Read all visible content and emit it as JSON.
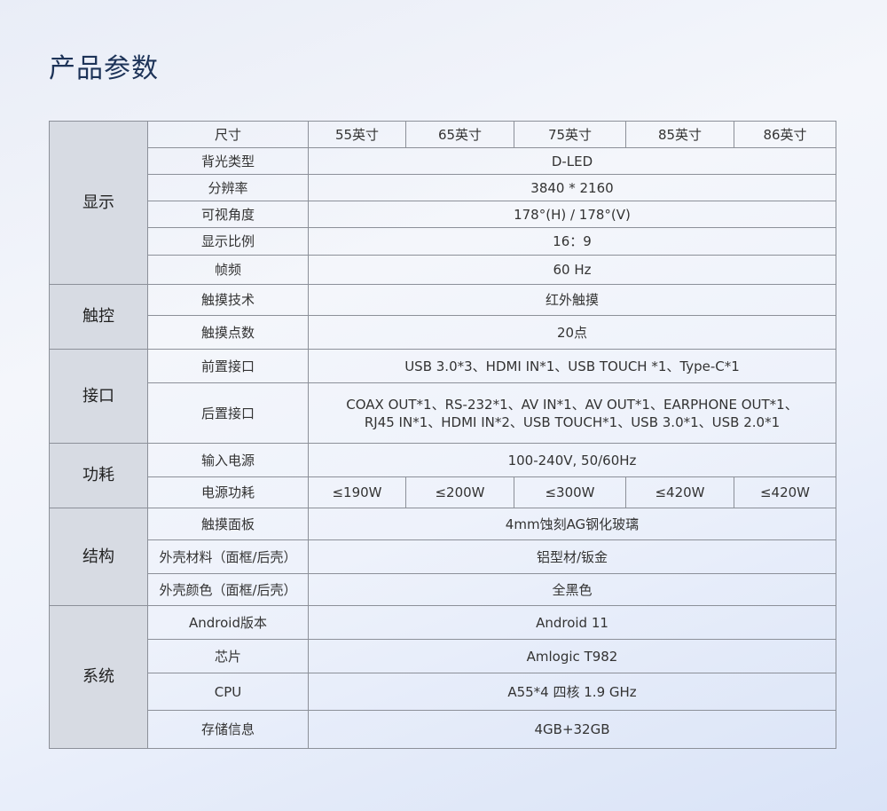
{
  "title": "产品参数",
  "sections": [
    {
      "category": "显示",
      "rows": [
        {
          "label": "尺寸",
          "values": [
            "55英寸",
            "65英寸",
            "75英寸",
            "85英寸",
            "86英寸"
          ]
        },
        {
          "label": "背光类型",
          "values": [
            "D-LED"
          ]
        },
        {
          "label": "分辨率",
          "values": [
            "3840 * 2160"
          ]
        },
        {
          "label": "可视角度",
          "values": [
            "178°(H) / 178°(V)"
          ]
        },
        {
          "label": "显示比例",
          "values": [
            "16：9"
          ]
        },
        {
          "label": "帧频",
          "values": [
            "60 Hz"
          ]
        }
      ]
    },
    {
      "category": "触控",
      "rows": [
        {
          "label": "触摸技术",
          "values": [
            "红外触摸"
          ]
        },
        {
          "label": "触摸点数",
          "values": [
            "20点"
          ]
        }
      ]
    },
    {
      "category": "接口",
      "rows": [
        {
          "label": "前置接口",
          "values": [
            "USB 3.0*3、HDMI IN*1、USB TOUCH *1、Type-C*1"
          ]
        },
        {
          "label": "后置接口",
          "values": [
            "COAX OUT*1、RS-232*1、AV IN*1、AV OUT*1、EARPHONE OUT*1、\nRJ45 IN*1、HDMI IN*2、USB TOUCH*1、USB 3.0*1、USB 2.0*1"
          ]
        }
      ]
    },
    {
      "category": "功耗",
      "rows": [
        {
          "label": "输入电源",
          "values": [
            "100-240V, 50/60Hz"
          ]
        },
        {
          "label": "电源功耗",
          "values": [
            "≤190W",
            "≤200W",
            "≤300W",
            "≤420W",
            "≤420W"
          ]
        }
      ]
    },
    {
      "category": "结构",
      "rows": [
        {
          "label": "触摸面板",
          "values": [
            "4mm蚀刻AG钢化玻璃"
          ]
        },
        {
          "label": "外壳材料（面框/后壳）",
          "values": [
            "铝型材/钣金"
          ]
        },
        {
          "label": "外壳颜色（面框/后壳）",
          "values": [
            "全黑色"
          ]
        }
      ]
    },
    {
      "category": "系统",
      "rows": [
        {
          "label": "Android版本",
          "values": [
            "Android 11"
          ]
        },
        {
          "label": "芯片",
          "values": [
            "Amlogic T982"
          ]
        },
        {
          "label": "CPU",
          "values": [
            "A55*4 四核 1.9 GHz"
          ]
        },
        {
          "label": "存储信息",
          "values": [
            "4GB+32GB"
          ]
        }
      ]
    }
  ]
}
